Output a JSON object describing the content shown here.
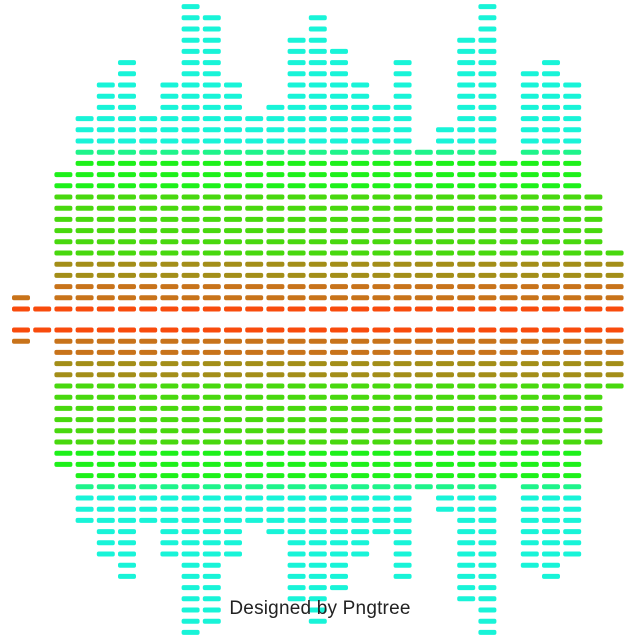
{
  "credit_text": "Designed by Pngtree",
  "equalizer": {
    "column_levels": [
      1,
      0,
      12,
      17,
      20,
      22,
      17,
      20,
      27,
      26,
      20,
      17,
      18,
      24,
      26,
      23,
      20,
      18,
      22,
      14,
      16,
      24,
      28,
      13,
      21,
      22,
      20,
      10,
      5
    ],
    "palette": {
      "center": "#f84b0c",
      "inner": "#c8731a",
      "olive": "#a38e18",
      "green": "#48d80e",
      "bright_green": "#1ef01a",
      "mint": "#1ef48a",
      "cyan": "#18f4d8"
    }
  }
}
